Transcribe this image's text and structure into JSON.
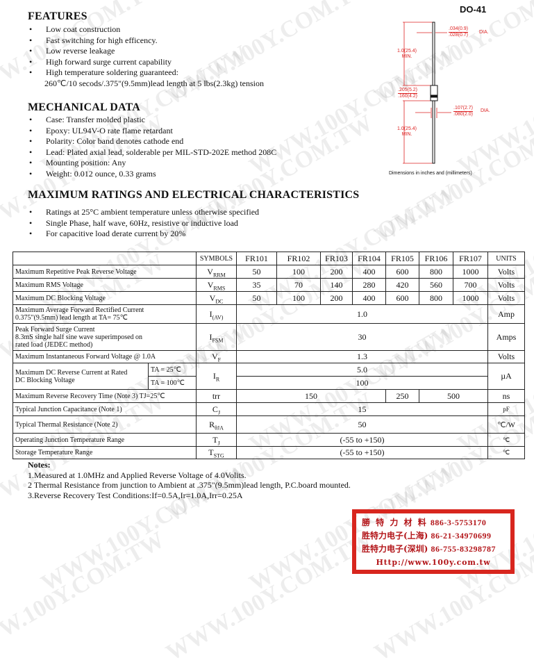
{
  "watermark": "WWW.100Y.COM.TW",
  "features": {
    "title": "FEATURES",
    "items": [
      "Low coat construction",
      "Fast switching for high efficency.",
      "Low reverse leakage",
      "High forward surge current capability",
      "High temperature soldering guaranteed:",
      "260℃/10 secods/.375\"(9.5mm)lead length at 5 lbs(2.3kg) tension"
    ]
  },
  "mechanical": {
    "title": "MECHANICAL DATA",
    "items": [
      "Case: Transfer molded plastic",
      "Epoxy: UL94V-O rate flame retardant",
      "Polarity: Color band denotes cathode end",
      "Lead: Plated axial lead, solderable per MIL-STD-202E method 208C",
      "Mounting position: Any",
      "Weight:  0.012 ounce, 0.33 grams"
    ]
  },
  "package": {
    "name": "DO-41",
    "lead_dia_max": ".034(0.9)",
    "lead_dia_min": ".028(0.7)",
    "dia": "DIA.",
    "lead_len": "1.0(25.4)",
    "min": "MIN.",
    "body_len_max": ".205(5.2)",
    "body_len_min": ".160(4.2)",
    "body_dia_max": ".107(2.7)",
    "body_dia_min": ".080(2.0)",
    "caption": "Dimensions in inches and (millimeters)",
    "color": "#d22222"
  },
  "ratings": {
    "title": "MAXIMUM RATINGS AND ELECTRICAL CHARACTERISTICS",
    "items": [
      "Ratings at 25°C ambient temperature unless otherwise specified",
      "Single Phase, half wave, 60Hz, resistive or inductive load",
      "For capacitive load derate current by 20%"
    ]
  },
  "table": {
    "headers": [
      "SYMBOLS",
      "FR101",
      "FR102",
      "FR103",
      "FR104",
      "FR105",
      "FR106",
      "FR107",
      "UNITS"
    ],
    "vrrm": {
      "label": "Maximum Repetitive Peak Reverse Voltage",
      "sym": "V",
      "sub": "RRM",
      "values": [
        "50",
        "100",
        "200",
        "400",
        "600",
        "800",
        "1000"
      ],
      "unit": "Volts"
    },
    "vrms": {
      "label": "Maximum RMS Voltage",
      "sym": "V",
      "sub": "RMS",
      "values": [
        "35",
        "70",
        "140",
        "280",
        "420",
        "560",
        "700"
      ],
      "unit": "Volts"
    },
    "vdc": {
      "label": "Maximum DC Blocking Voltage",
      "sym": "V",
      "sub": "DC",
      "values": [
        "50",
        "100",
        "200",
        "400",
        "600",
        "800",
        "1000"
      ],
      "unit": "Volts"
    },
    "iav": {
      "label1": "Maximum Average Forward Rectified Current",
      "label2": "0.375\"(9.5mm) lead length at TA= 75℃",
      "sym": "I",
      "sub": "(AV)",
      "value": "1.0",
      "unit": "Amp"
    },
    "ifsm": {
      "label1": "Peak Forward Surge Current",
      "label2": "8.3mS single half sine wave superimposed on",
      "label3": "rated load (JEDEC method)",
      "sym": "I",
      "sub": "FSM",
      "value": "30",
      "unit": "Amps"
    },
    "vf": {
      "label": "Maximum Instantaneous Forward Voltage @ 1.0A",
      "sym": "V",
      "sub": "F",
      "value": "1.3",
      "unit": "Volts"
    },
    "ir": {
      "label1": "Maximum DC Reverse Current at Rated",
      "label2": "DC Blocking Voltage",
      "cond1": "TA = 25℃",
      "cond2": "TA = 100℃",
      "sym": "I",
      "sub": "R",
      "value1": "5.0",
      "value2": "100",
      "unit": "µA"
    },
    "trr": {
      "label": "Maximum Reverse Recovery Time (Note 3) TJ=25℃",
      "sym": "trr",
      "values": [
        "150",
        "250",
        "500"
      ],
      "unit": "ns"
    },
    "cj": {
      "label": "Typical Junction Capacitance (Note 1)",
      "sym": "C",
      "sub": "J",
      "value": "15",
      "unit": "pF"
    },
    "rth": {
      "label": "Typical Thermal Resistance (Note 2)",
      "sym": "R",
      "sub": "θJA",
      "value": "50",
      "unit": "℃/W"
    },
    "tj": {
      "label": "Operating Junction Temperature Range",
      "sym": "T",
      "sub": "J",
      "value": "(-55 to +150)",
      "unit": "℃"
    },
    "tstg": {
      "label": "Storage Temperature Range",
      "sym": "T",
      "sub": "STG",
      "value": "(-55 to +150)",
      "unit": "℃"
    }
  },
  "notes": {
    "title": "Notes:",
    "items": [
      "1.Measured at 1.0MHz and Applied Reverse Voltage of 4.0Volits.",
      "2 Thermal Resistance from junction to Ambient at .375\"(9.5mm)lead length, P.C.board mounted.",
      "3.Reverse Recovery Test Conditions:If=0.5A,Ir=1.0A,Irr=0.25A"
    ]
  },
  "stamp": {
    "l1": "勝 特 力 材 料",
    "p1": "886-3-5753170",
    "l2": "胜特力电子(上海)",
    "p2": "86-21-34970699",
    "l3": "胜特力电子(深圳)",
    "p3": "86-755-83298787",
    "url": "Http://www.100y.com.tw",
    "color": "#d8261e"
  }
}
